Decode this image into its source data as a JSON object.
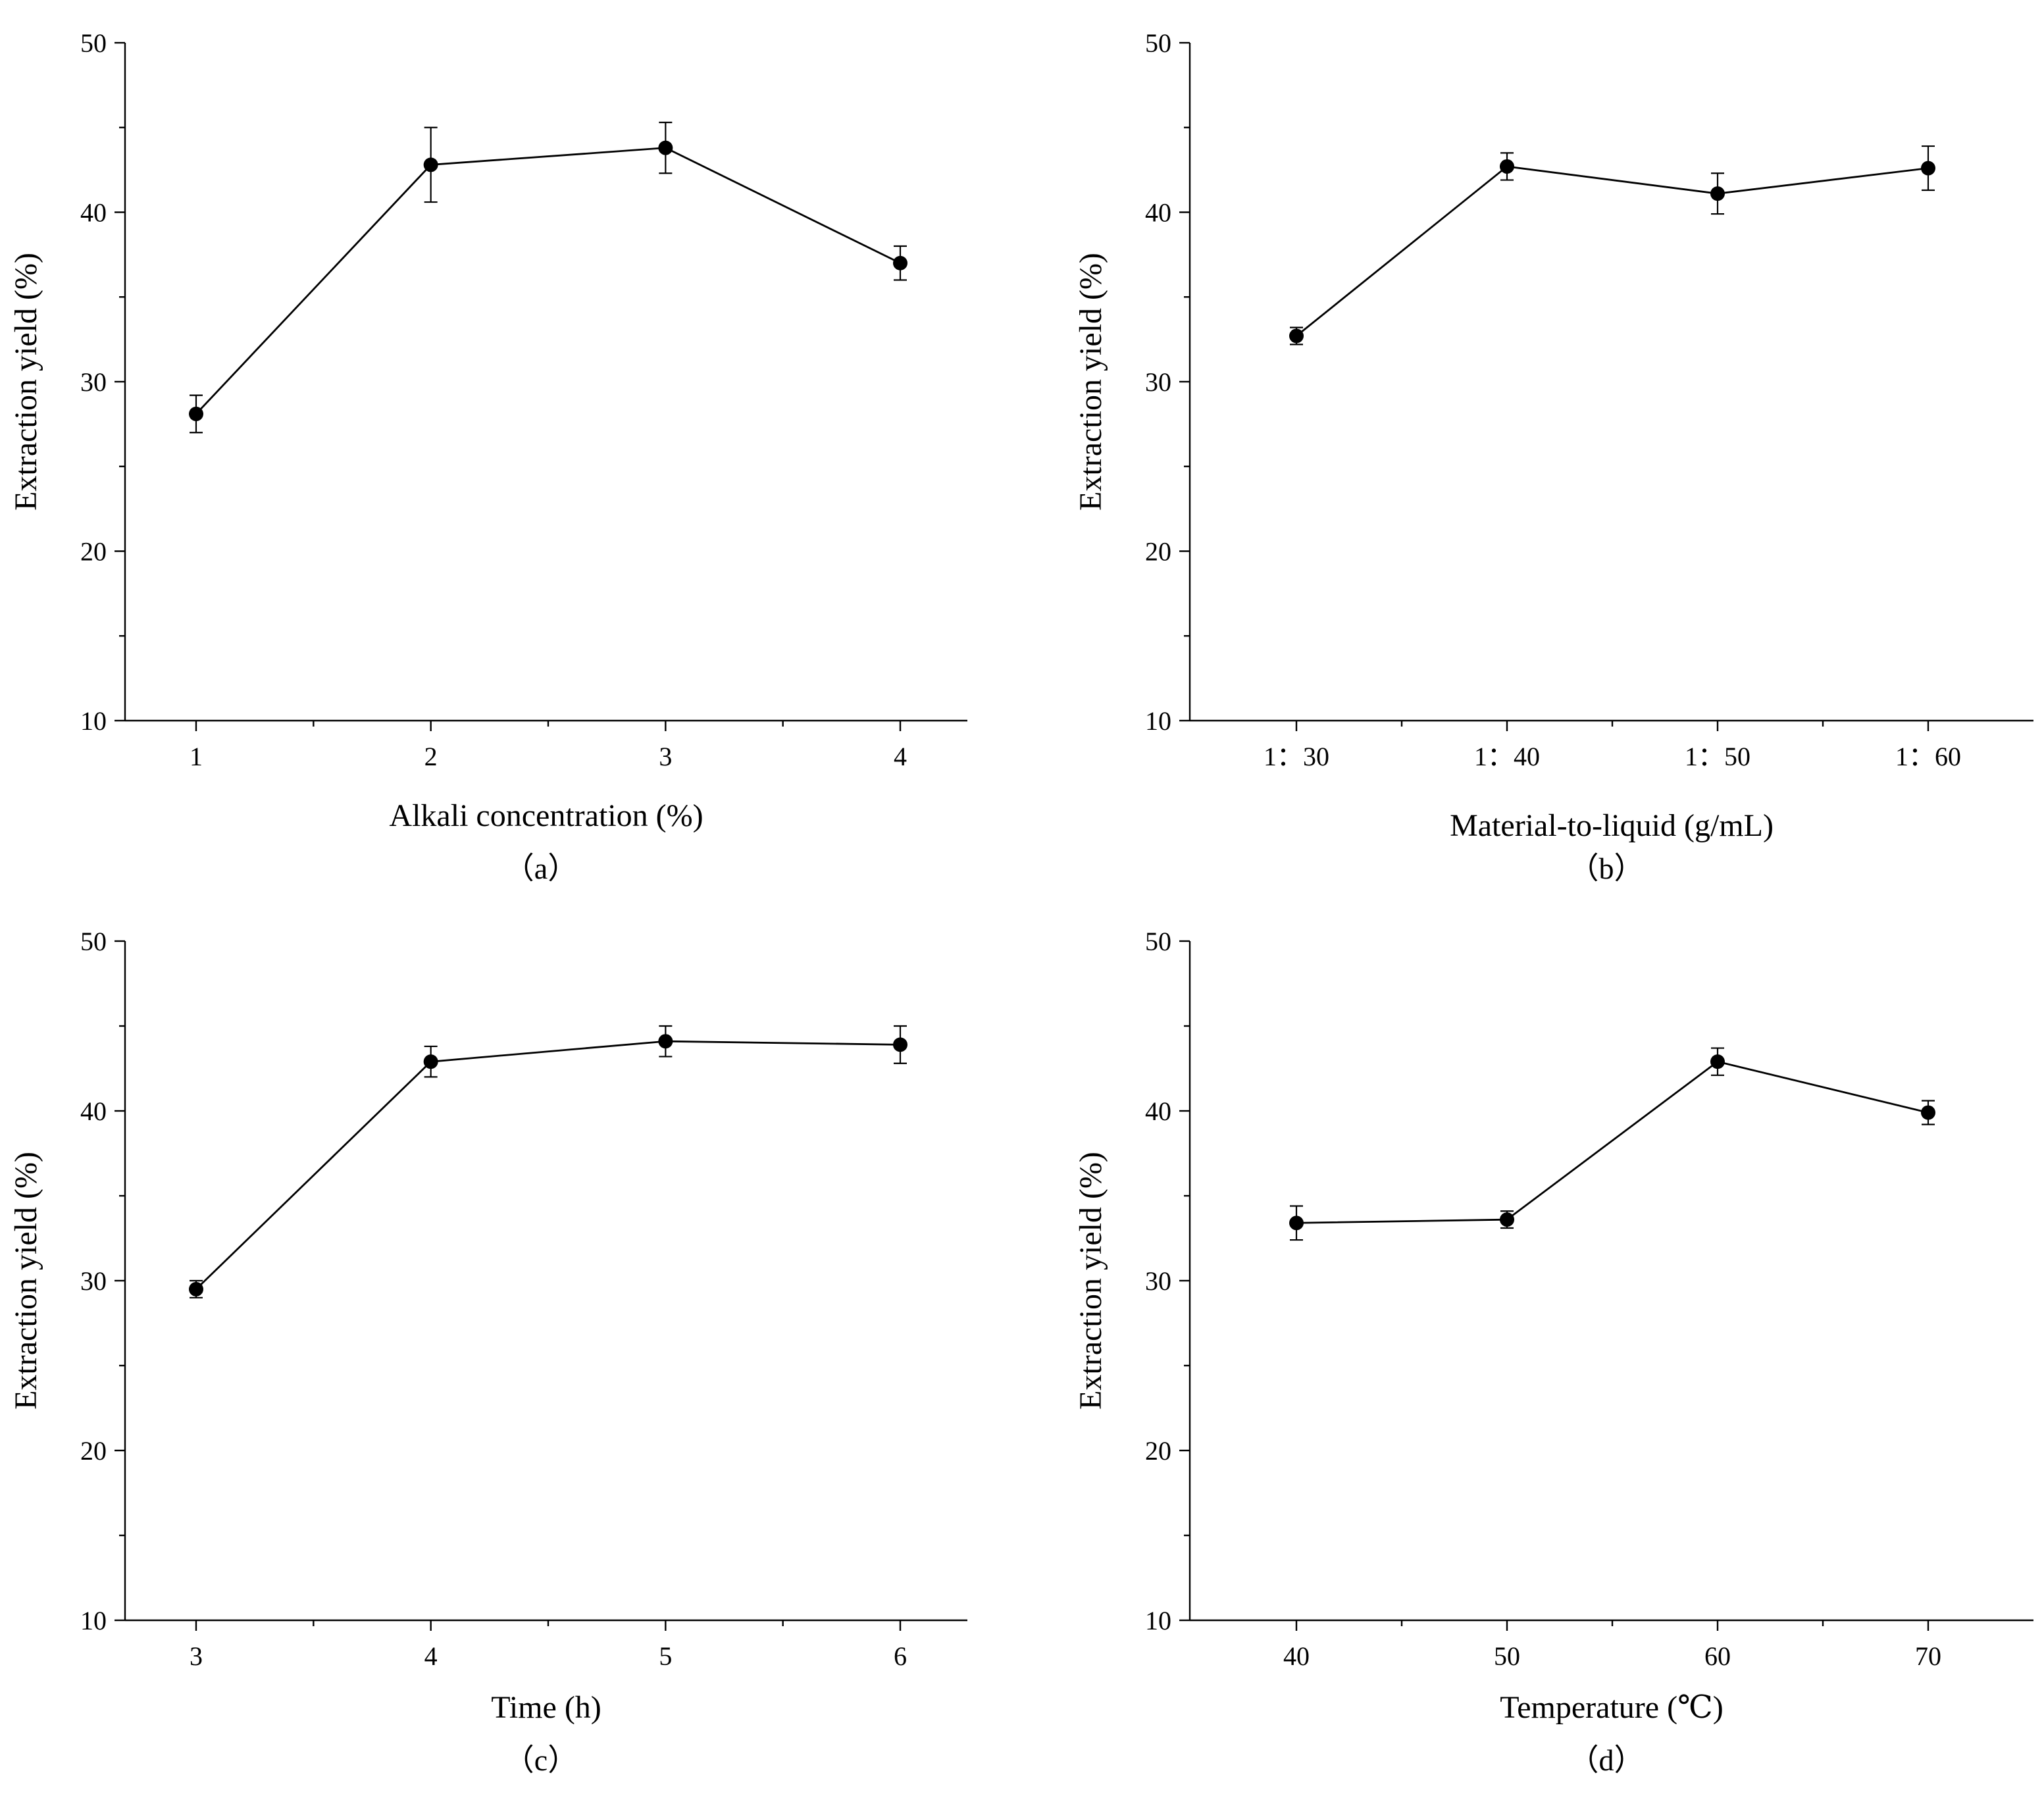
{
  "chart_data": [
    {
      "type": "line",
      "panel_label": "（a）",
      "xlabel": "Alkali concentration (%)",
      "ylabel": "Extraction yield (%)",
      "categories": [
        "1",
        "2",
        "3",
        "4"
      ],
      "values": [
        28.1,
        42.8,
        43.8,
        37.0
      ],
      "errors": [
        1.1,
        2.2,
        1.5,
        1.0
      ],
      "ylim": [
        10,
        50
      ],
      "yticks": [
        "10",
        "20",
        "30",
        "40",
        "50"
      ],
      "grid": false
    },
    {
      "type": "line",
      "panel_label": "（b）",
      "xlabel": "Material-to-liquid (g/mL)",
      "ylabel": "Extraction yield (%)",
      "categories": [
        "1：30",
        "1：40",
        "1：50",
        "1：60"
      ],
      "values": [
        32.7,
        42.7,
        41.1,
        42.6
      ],
      "errors": [
        0.5,
        0.8,
        1.2,
        1.3
      ],
      "ylim": [
        10,
        50
      ],
      "yticks": [
        "10",
        "20",
        "30",
        "40",
        "50"
      ],
      "grid": false
    },
    {
      "type": "line",
      "panel_label": "（c）",
      "xlabel": "Time (h)",
      "ylabel": "Extraction yield (%)",
      "categories": [
        "3",
        "4",
        "5",
        "6"
      ],
      "values": [
        29.5,
        42.9,
        44.1,
        43.9
      ],
      "errors": [
        0.5,
        0.9,
        0.9,
        1.1
      ],
      "ylim": [
        10,
        50
      ],
      "yticks": [
        "10",
        "20",
        "30",
        "40",
        "50"
      ],
      "grid": false
    },
    {
      "type": "line",
      "panel_label": "（d）",
      "xlabel": "Temperature (℃)",
      "ylabel": "Extraction yield (%)",
      "categories": [
        "40",
        "50",
        "60",
        "70"
      ],
      "values": [
        33.4,
        33.6,
        42.9,
        39.9
      ],
      "errors": [
        1.0,
        0.5,
        0.8,
        0.7
      ],
      "ylim": [
        10,
        50
      ],
      "yticks": [
        "10",
        "20",
        "30",
        "40",
        "50"
      ],
      "grid": false
    }
  ]
}
